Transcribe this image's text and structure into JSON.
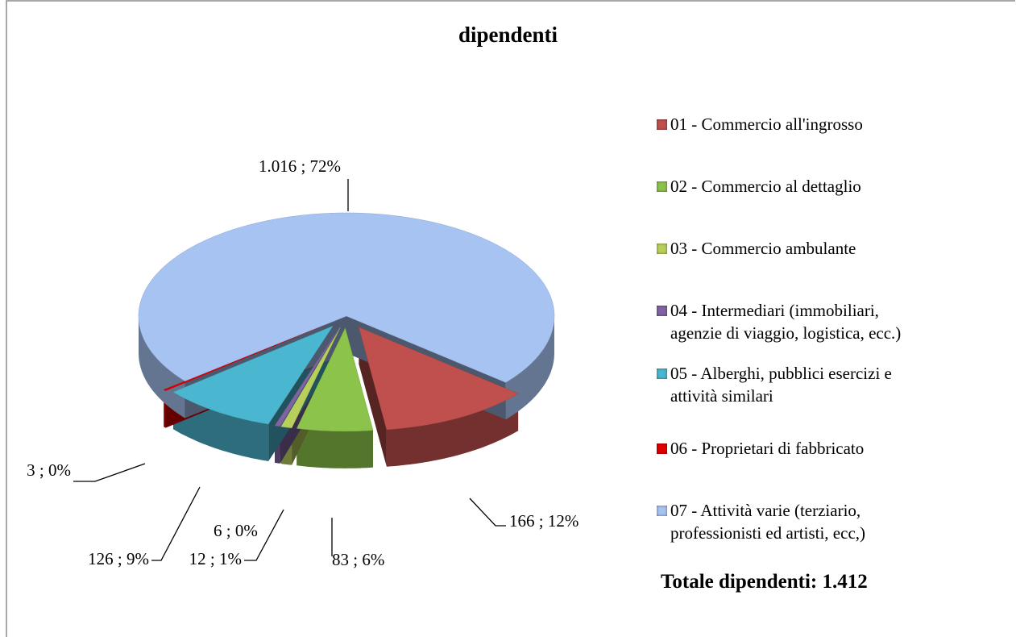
{
  "chart_data": {
    "type": "pie",
    "title": "dipendenti",
    "categories": [
      "01 - Commercio all'ingrosso",
      "02 - Commercio al dettaglio",
      "03 - Commercio ambulante",
      "04 - Intermediari (immobiliari, agenzie di viaggio, logistica, ecc.)",
      "05 - Alberghi, pubblici esercizi e attività similari",
      "06 - Proprietari di fabbricato",
      "07 - Attività varie (terziario, professionisti ed artisti, ecc,)"
    ],
    "values": [
      166,
      83,
      12,
      6,
      126,
      3,
      1016
    ],
    "value_labels": [
      "166 ; 12%",
      "83 ; 6%",
      "12 ; 1%",
      "6 ; 0%",
      "126 ; 9%",
      "3 ; 0%",
      "1.016 ; 72%"
    ],
    "colors": [
      "#c0504d",
      "#8cc34a",
      "#b8cf5c",
      "#8064a2",
      "#4bb6d0",
      "#e00000",
      "#a7c3f2"
    ],
    "annotation": "Totale dipendenti: 1.412",
    "legend": "right"
  }
}
